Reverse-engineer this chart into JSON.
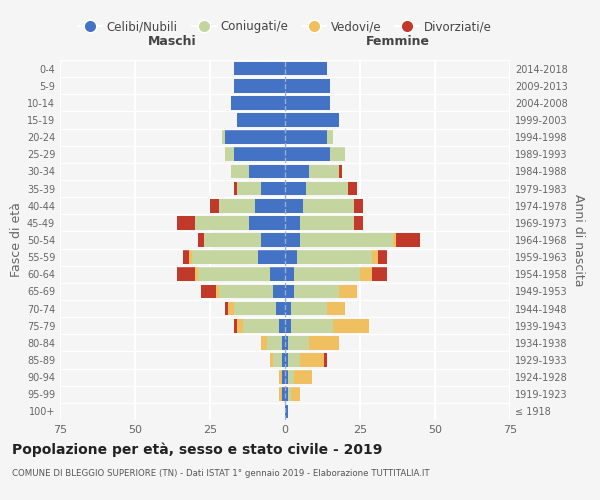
{
  "age_groups": [
    "100+",
    "95-99",
    "90-94",
    "85-89",
    "80-84",
    "75-79",
    "70-74",
    "65-69",
    "60-64",
    "55-59",
    "50-54",
    "45-49",
    "40-44",
    "35-39",
    "30-34",
    "25-29",
    "20-24",
    "15-19",
    "10-14",
    "5-9",
    "0-4"
  ],
  "birth_years": [
    "≤ 1918",
    "1919-1923",
    "1924-1928",
    "1929-1933",
    "1934-1938",
    "1939-1943",
    "1944-1948",
    "1949-1953",
    "1954-1958",
    "1959-1963",
    "1964-1968",
    "1969-1973",
    "1974-1978",
    "1979-1983",
    "1984-1988",
    "1989-1993",
    "1994-1998",
    "1999-2003",
    "2004-2008",
    "2009-2013",
    "2014-2018"
  ],
  "colors": {
    "celibi": "#4472c4",
    "coniugati": "#c5d5a0",
    "vedovi": "#f0c060",
    "divorziati": "#c0392b"
  },
  "maschi": {
    "celibi": [
      0,
      1,
      1,
      1,
      1,
      2,
      3,
      4,
      5,
      9,
      8,
      12,
      10,
      8,
      12,
      17,
      20,
      16,
      18,
      17,
      17
    ],
    "coniugati": [
      0,
      0,
      0,
      3,
      5,
      12,
      14,
      18,
      24,
      22,
      19,
      18,
      12,
      8,
      6,
      3,
      1,
      0,
      0,
      0,
      0
    ],
    "vedovi": [
      0,
      1,
      1,
      1,
      2,
      2,
      2,
      1,
      1,
      1,
      0,
      0,
      0,
      0,
      0,
      0,
      0,
      0,
      0,
      0,
      0
    ],
    "divorziati": [
      0,
      0,
      0,
      0,
      0,
      1,
      1,
      5,
      6,
      2,
      2,
      6,
      3,
      1,
      0,
      0,
      0,
      0,
      0,
      0,
      0
    ]
  },
  "femmine": {
    "celibi": [
      1,
      1,
      1,
      1,
      1,
      2,
      2,
      3,
      3,
      4,
      5,
      5,
      6,
      7,
      8,
      15,
      14,
      18,
      15,
      15,
      14
    ],
    "coniugati": [
      0,
      1,
      2,
      4,
      7,
      14,
      12,
      15,
      22,
      25,
      31,
      18,
      17,
      14,
      10,
      5,
      2,
      0,
      0,
      0,
      0
    ],
    "vedovi": [
      0,
      3,
      6,
      8,
      10,
      12,
      6,
      6,
      4,
      2,
      1,
      0,
      0,
      0,
      0,
      0,
      0,
      0,
      0,
      0,
      0
    ],
    "divorziati": [
      0,
      0,
      0,
      1,
      0,
      0,
      0,
      0,
      5,
      3,
      8,
      3,
      3,
      3,
      1,
      0,
      0,
      0,
      0,
      0,
      0
    ]
  },
  "xlim": 75,
  "title": "Popolazione per età, sesso e stato civile - 2019",
  "subtitle": "COMUNE DI BLEGGIO SUPERIORE (TN) - Dati ISTAT 1° gennaio 2019 - Elaborazione TUTTITALIA.IT",
  "ylabel_left": "Fasce di età",
  "ylabel_right": "Anni di nascita",
  "xlabel_maschi": "Maschi",
  "xlabel_femmine": "Femmine",
  "legend_labels": [
    "Celibi/Nubili",
    "Coniugati/e",
    "Vedovi/e",
    "Divorziati/e"
  ],
  "bg_color": "#f5f5f5"
}
